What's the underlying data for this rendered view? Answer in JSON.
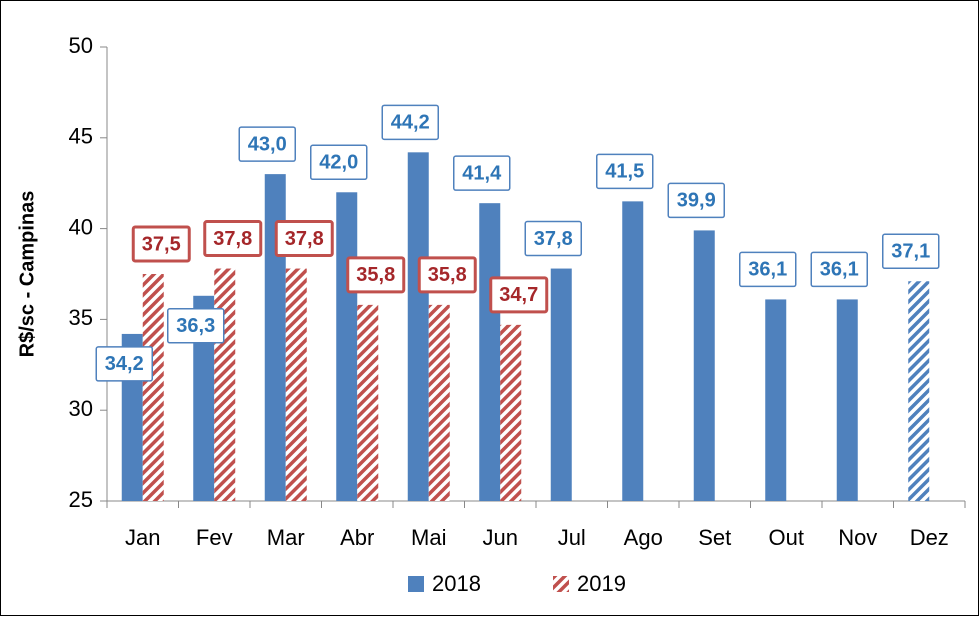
{
  "chart_data": {
    "type": "bar",
    "y_label": "R$/sc - Campinas",
    "categories": [
      "Jan",
      "Fev",
      "Mar",
      "Abr",
      "Mai",
      "Jun",
      "Jul",
      "Ago",
      "Set",
      "Out",
      "Nov",
      "Dez"
    ],
    "series": [
      {
        "name": "2018",
        "color": "#4f81bd",
        "pattern": "solid",
        "hatched_points": [
          11
        ],
        "values": [
          34.2,
          36.3,
          43.0,
          42.0,
          44.2,
          41.4,
          37.8,
          41.5,
          39.9,
          36.1,
          36.1,
          37.1
        ],
        "value_labels": [
          "34,2",
          "36,3",
          "43,0",
          "42,0",
          "44,2",
          "41,4",
          "37,8",
          "41,5",
          "39,9",
          "36,1",
          "36,1",
          "37,1"
        ]
      },
      {
        "name": "2019",
        "color": "#c0504d",
        "pattern": "hatch",
        "values": [
          37.5,
          37.8,
          37.8,
          35.8,
          35.8,
          34.7,
          null,
          null,
          null,
          null,
          null,
          null
        ],
        "value_labels": [
          "37,5",
          "37,8",
          "37,8",
          "35,8",
          "35,8",
          "34,7",
          null,
          null,
          null,
          null,
          null,
          null
        ]
      }
    ],
    "ylim": [
      25,
      50
    ],
    "yticks": [
      25,
      30,
      35,
      40,
      45,
      50
    ],
    "grid": false,
    "legend": "bottom"
  }
}
